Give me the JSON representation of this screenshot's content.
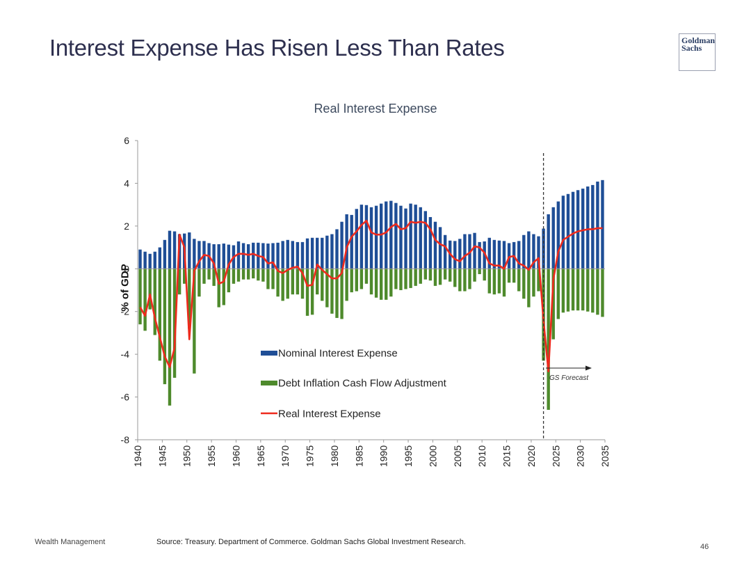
{
  "slide": {
    "title": "Interest Expense Has Risen Less Than Rates",
    "logo_line1": "Goldman",
    "logo_line2": "Sachs",
    "footer_left": "Wealth Management",
    "source": "Source: Treasury. Department of Commerce. Goldman Sachs Global Investment Research.",
    "page_number": "46"
  },
  "colors": {
    "nominal": "#1f4e96",
    "adjustment": "#4e8a2c",
    "real": "#ee2a1d",
    "axis": "#999999"
  },
  "chart_data": {
    "type": "bar",
    "title": "Real Interest Expense",
    "ylabel": "% of GDP",
    "ylim": [
      -8,
      6
    ],
    "yticks": [
      6,
      4,
      2,
      0,
      -2,
      -4,
      -6,
      -8
    ],
    "xticks": [
      1940,
      1945,
      1950,
      1955,
      1960,
      1965,
      1970,
      1975,
      1980,
      1985,
      1990,
      1995,
      2000,
      2005,
      2010,
      2015,
      2020,
      2025,
      2030,
      2035
    ],
    "x": [
      1940,
      1941,
      1942,
      1943,
      1944,
      1945,
      1946,
      1947,
      1948,
      1949,
      1950,
      1951,
      1952,
      1953,
      1954,
      1955,
      1956,
      1957,
      1958,
      1959,
      1960,
      1961,
      1962,
      1963,
      1964,
      1965,
      1966,
      1967,
      1968,
      1969,
      1970,
      1971,
      1972,
      1973,
      1974,
      1975,
      1976,
      1977,
      1978,
      1979,
      1980,
      1981,
      1982,
      1983,
      1984,
      1985,
      1986,
      1987,
      1988,
      1989,
      1990,
      1991,
      1992,
      1993,
      1994,
      1995,
      1996,
      1997,
      1998,
      1999,
      2000,
      2001,
      2002,
      2003,
      2004,
      2005,
      2006,
      2007,
      2008,
      2009,
      2010,
      2011,
      2012,
      2013,
      2014,
      2015,
      2016,
      2017,
      2018,
      2019,
      2020,
      2021,
      2022,
      2023,
      2024,
      2025,
      2026,
      2027,
      2028,
      2029,
      2030,
      2031,
      2032,
      2033,
      2034
    ],
    "series": [
      {
        "name": "Nominal Interest Expense",
        "kind": "bar",
        "values": [
          0.9,
          0.8,
          0.7,
          0.8,
          1.0,
          1.35,
          1.78,
          1.75,
          1.62,
          1.65,
          1.7,
          1.4,
          1.3,
          1.3,
          1.2,
          1.15,
          1.15,
          1.18,
          1.13,
          1.1,
          1.28,
          1.2,
          1.15,
          1.22,
          1.22,
          1.2,
          1.18,
          1.2,
          1.22,
          1.3,
          1.35,
          1.3,
          1.25,
          1.25,
          1.42,
          1.45,
          1.45,
          1.45,
          1.55,
          1.62,
          1.85,
          2.2,
          2.55,
          2.52,
          2.8,
          3.0,
          2.98,
          2.88,
          2.95,
          3.05,
          3.15,
          3.18,
          3.08,
          2.95,
          2.82,
          3.05,
          3.0,
          2.88,
          2.7,
          2.42,
          2.2,
          1.95,
          1.58,
          1.32,
          1.3,
          1.4,
          1.62,
          1.62,
          1.68,
          1.25,
          1.28,
          1.45,
          1.35,
          1.32,
          1.3,
          1.2,
          1.25,
          1.3,
          1.58,
          1.75,
          1.62,
          1.52,
          1.88,
          2.55,
          2.88,
          3.15,
          3.42,
          3.5,
          3.6,
          3.68,
          3.75,
          3.85,
          3.92,
          4.08,
          4.15
        ]
      },
      {
        "name": "Debt Inflation Cash Flow Adjustment",
        "kind": "bar",
        "values": [
          -2.6,
          -2.9,
          -1.9,
          -3.1,
          -4.3,
          -5.4,
          -6.4,
          -5.1,
          -1.2,
          -0.7,
          -2.8,
          -4.9,
          -1.3,
          -0.7,
          -0.5,
          -0.8,
          -1.8,
          -1.7,
          -1.1,
          -0.7,
          -0.6,
          -0.5,
          -0.5,
          -0.45,
          -0.55,
          -0.6,
          -0.95,
          -0.95,
          -1.3,
          -1.5,
          -1.4,
          -1.2,
          -1.2,
          -1.4,
          -2.2,
          -2.15,
          -1.2,
          -1.5,
          -1.8,
          -2.1,
          -2.3,
          -2.35,
          -1.5,
          -1.1,
          -1.05,
          -0.95,
          -0.7,
          -1.2,
          -1.35,
          -1.45,
          -1.45,
          -1.3,
          -0.95,
          -1.0,
          -0.95,
          -0.9,
          -0.8,
          -0.7,
          -0.5,
          -0.55,
          -0.8,
          -0.75,
          -0.5,
          -0.6,
          -0.85,
          -1.05,
          -1.05,
          -0.95,
          -0.6,
          -0.25,
          -0.55,
          -1.15,
          -1.2,
          -1.15,
          -1.3,
          -0.65,
          -0.65,
          -1.05,
          -1.4,
          -1.8,
          -1.3,
          -1.05,
          -4.3,
          -6.6,
          -3.3,
          -2.35,
          -2.05,
          -2.0,
          -1.95,
          -1.95,
          -1.95,
          -2.0,
          -2.05,
          -2.15,
          -2.25
        ]
      },
      {
        "name": "Real Interest Expense",
        "kind": "line",
        "values": [
          -1.8,
          -2.2,
          -1.2,
          -2.3,
          -3.2,
          -4.1,
          -4.6,
          -3.7,
          1.6,
          1.0,
          -3.3,
          -0.1,
          0.35,
          0.65,
          0.6,
          0.25,
          -0.7,
          -0.6,
          0.2,
          0.55,
          0.7,
          0.7,
          0.65,
          0.7,
          0.6,
          0.55,
          0.25,
          0.3,
          -0.1,
          -0.2,
          -0.05,
          0.05,
          0.1,
          -0.2,
          -0.8,
          -0.75,
          0.2,
          -0.05,
          -0.25,
          -0.45,
          -0.45,
          -0.2,
          1.0,
          1.5,
          1.75,
          2.05,
          2.25,
          1.7,
          1.6,
          1.6,
          1.7,
          1.95,
          2.1,
          1.85,
          1.9,
          2.2,
          2.15,
          2.2,
          2.15,
          1.85,
          1.35,
          1.15,
          1.05,
          0.7,
          0.45,
          0.35,
          0.6,
          0.75,
          1.05,
          1.0,
          0.75,
          0.25,
          0.15,
          0.15,
          0.0,
          0.55,
          0.6,
          0.25,
          0.15,
          -0.05,
          0.3,
          0.5,
          -2.4,
          -4.8,
          -0.5,
          0.8,
          1.35,
          1.5,
          1.65,
          1.75,
          1.8,
          1.85,
          1.85,
          1.9,
          1.9
        ]
      }
    ],
    "forecast_start": 2023,
    "annotations": [
      "GS Forecast"
    ],
    "legend_position": "center-bottom",
    "grid": false
  }
}
